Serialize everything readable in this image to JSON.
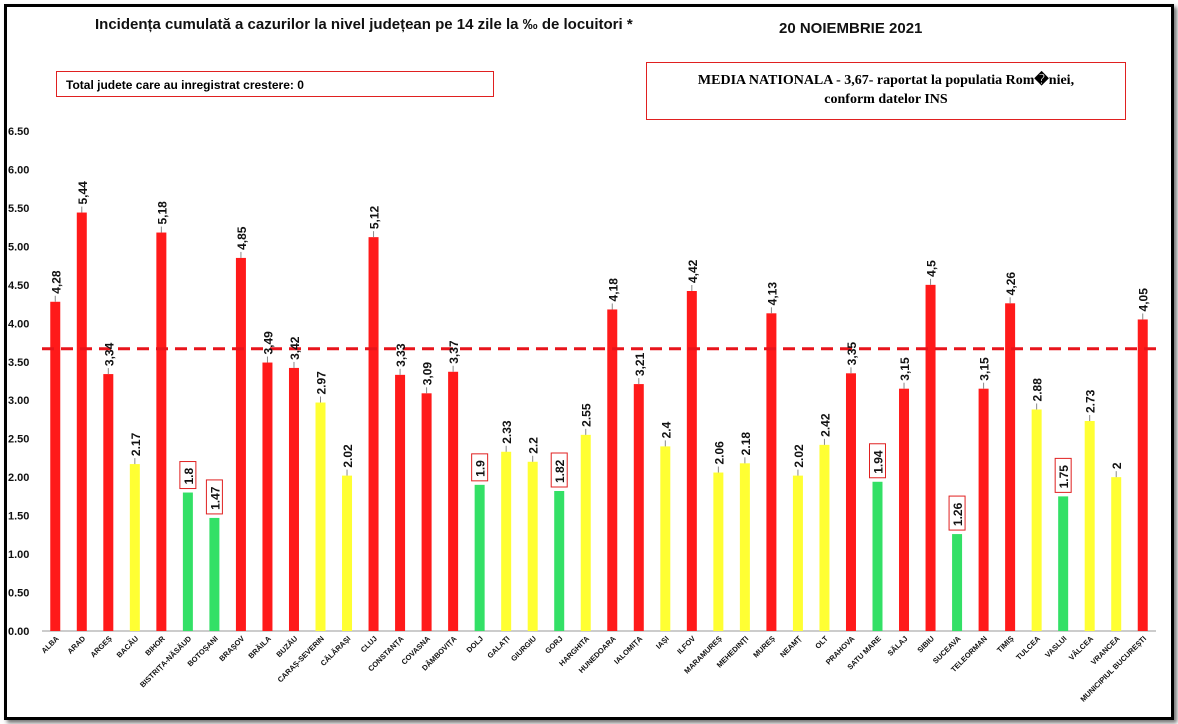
{
  "header": {
    "title": "Incidența cumulată a cazurilor la nivel județean pe 14 zile la ‰ de locuitori *",
    "date": "20 NOIEMBRIE 2021"
  },
  "notes": {
    "growth": "Total judete care au inregistrat crestere: 0",
    "media_line1": "MEDIA NATIONALA - 3,67-  raportat la populatia Rom�niei,",
    "media_line2": "conform datelor INS"
  },
  "colors": {
    "red": "#ff1a1a",
    "yellow": "#ffff33",
    "green": "#33e066",
    "average_line": "#e8141b"
  },
  "chart_data": {
    "type": "bar",
    "title": "Incidența cumulată a cazurilor la nivel județean pe 14 zile la ‰ de locuitori *",
    "xlabel": "",
    "ylabel": "",
    "ylim": [
      0,
      6.5
    ],
    "yticks": [
      "0.00",
      "0.50",
      "1.00",
      "1.50",
      "2.00",
      "2.50",
      "3.00",
      "3.50",
      "4.00",
      "4.50",
      "5.00",
      "5.50",
      "6.00",
      "6.50"
    ],
    "grid": false,
    "average": 3.67,
    "categories": [
      "ALBA",
      "ARAD",
      "ARGEȘ",
      "BACĂU",
      "BIHOR",
      "BISTRIȚA-NĂSĂUD",
      "BOTOȘANI",
      "BRAȘOV",
      "BRĂILA",
      "BUZĂU",
      "CARAȘ-SEVERIN",
      "CĂLĂRAȘI",
      "CLUJ",
      "CONSTANȚA",
      "COVASNA",
      "DÂMBOVIȚA",
      "DOLJ",
      "GALAȚI",
      "GIURGIU",
      "GORJ",
      "HARGHITA",
      "HUNEDOARA",
      "IALOMIȚA",
      "IAȘI",
      "ILFOV",
      "MARAMUREȘ",
      "MEHEDINȚI",
      "MUREȘ",
      "NEAMȚ",
      "OLT",
      "PRAHOVA",
      "SATU MARE",
      "SĂLAJ",
      "SIBIU",
      "SUCEAVA",
      "TELEORMAN",
      "TIMIȘ",
      "TULCEA",
      "VASLUI",
      "VÂLCEA",
      "VRANCEA",
      "MUNICIPIUL BUCUREȘTI"
    ],
    "values": [
      4.28,
      5.44,
      3.34,
      2.17,
      5.18,
      1.8,
      1.47,
      4.85,
      3.49,
      3.42,
      2.97,
      2.02,
      5.12,
      3.33,
      3.09,
      3.37,
      1.9,
      2.33,
      2.2,
      1.82,
      2.55,
      4.18,
      3.21,
      2.4,
      4.42,
      2.06,
      2.18,
      4.13,
      2.02,
      2.42,
      3.35,
      1.94,
      3.15,
      4.5,
      1.26,
      3.15,
      4.26,
      2.88,
      1.75,
      2.73,
      2,
      4.05
    ],
    "labels": [
      "4,28",
      "5,44",
      "3,34",
      "2.17",
      "5,18",
      "1.8",
      "1.47",
      "4,85",
      "3,49",
      "3,42",
      "2.97",
      "2.02",
      "5,12",
      "3,33",
      "3,09",
      "3,37",
      "1.9",
      "2.33",
      "2.2",
      "1.82",
      "2.55",
      "4,18",
      "3,21",
      "2.4",
      "4,42",
      "2.06",
      "2.18",
      "4,13",
      "2.02",
      "2.42",
      "3,35",
      "1.94",
      "3,15",
      "4,5",
      "1.26",
      "3,15",
      "4,26",
      "2.88",
      "1.75",
      "2.73",
      "2",
      "4,05"
    ],
    "colors": [
      "red",
      "red",
      "red",
      "yellow",
      "red",
      "green",
      "green",
      "red",
      "red",
      "red",
      "yellow",
      "yellow",
      "red",
      "red",
      "red",
      "red",
      "green",
      "yellow",
      "yellow",
      "green",
      "yellow",
      "red",
      "red",
      "yellow",
      "red",
      "yellow",
      "yellow",
      "red",
      "yellow",
      "yellow",
      "red",
      "green",
      "red",
      "red",
      "green",
      "red",
      "red",
      "yellow",
      "green",
      "yellow",
      "yellow",
      "red"
    ]
  }
}
